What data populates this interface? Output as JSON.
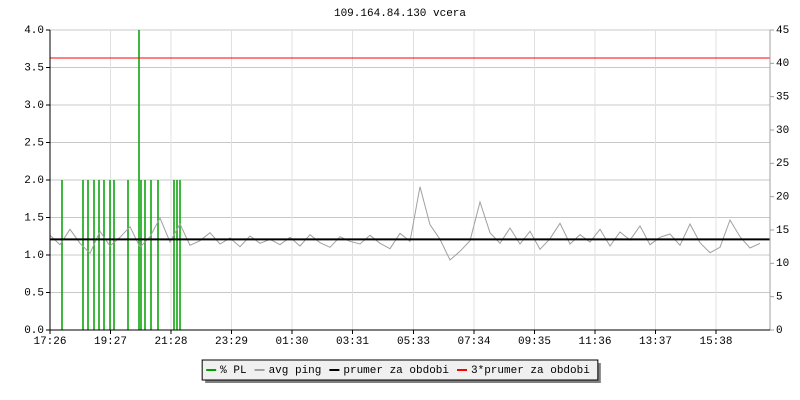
{
  "chart_data": {
    "type": "line",
    "title": "109.164.84.130 vcera",
    "xlim": [
      0,
      1440
    ],
    "xticks": [
      {
        "value": 0,
        "label": "17:26"
      },
      {
        "value": 121,
        "label": "19:27"
      },
      {
        "value": 242,
        "label": "21:28"
      },
      {
        "value": 363,
        "label": "23:29"
      },
      {
        "value": 484,
        "label": "01:30"
      },
      {
        "value": 605,
        "label": "03:31"
      },
      {
        "value": 727,
        "label": "05:33"
      },
      {
        "value": 848,
        "label": "07:34"
      },
      {
        "value": 969,
        "label": "09:35"
      },
      {
        "value": 1090,
        "label": "11:36"
      },
      {
        "value": 1211,
        "label": "13:37"
      },
      {
        "value": 1332,
        "label": "15:38"
      }
    ],
    "ylim": [
      0,
      4
    ],
    "yticks": [
      {
        "value": 0,
        "label": "0.0"
      },
      {
        "value": 0.5,
        "label": "0.5"
      },
      {
        "value": 1,
        "label": "1.0"
      },
      {
        "value": 1.5,
        "label": "1.5"
      },
      {
        "value": 2,
        "label": "2.0"
      },
      {
        "value": 2.5,
        "label": "2.5"
      },
      {
        "value": 3,
        "label": "3.0"
      },
      {
        "value": 3.5,
        "label": "3.5"
      },
      {
        "value": 4,
        "label": "4.0"
      }
    ],
    "y2lim": [
      0,
      45
    ],
    "y2ticks": [
      0,
      5,
      10,
      15,
      20,
      25,
      30,
      35,
      40,
      45
    ],
    "grid": true,
    "legend": "bottom",
    "series": [
      {
        "name": "% PL",
        "color": "#00a000",
        "kind": "bars",
        "x": [
          24,
          66,
          76,
          88,
          98,
          108,
          120,
          128,
          156,
          178,
          182,
          190,
          202,
          216,
          248,
          254,
          260
        ],
        "values": [
          2,
          2,
          2,
          2,
          2,
          2,
          2,
          2,
          2,
          4,
          2,
          2,
          2,
          2,
          2,
          2,
          2
        ]
      },
      {
        "name": "avg ping",
        "color": "#a0a0a0",
        "kind": "line",
        "axis": "y2",
        "x": [
          0,
          20,
          40,
          60,
          80,
          100,
          120,
          140,
          160,
          180,
          200,
          220,
          240,
          260,
          280,
          300,
          320,
          340,
          360,
          380,
          400,
          420,
          440,
          460,
          480,
          500,
          520,
          540,
          560,
          580,
          600,
          620,
          640,
          660,
          680,
          700,
          720,
          740,
          760,
          780,
          800,
          820,
          840,
          860,
          880,
          900,
          920,
          940,
          960,
          980,
          1000,
          1020,
          1040,
          1060,
          1080,
          1100,
          1120,
          1140,
          1160,
          1180,
          1200,
          1220,
          1240,
          1260,
          1280,
          1300,
          1320,
          1340,
          1360,
          1380,
          1400,
          1420
        ],
        "values": [
          14.2,
          12.8,
          15.1,
          13.0,
          11.5,
          14.8,
          12.6,
          13.9,
          15.5,
          12.4,
          14.0,
          16.8,
          13.2,
          15.9,
          12.7,
          13.4,
          14.6,
          12.9,
          13.8,
          12.5,
          14.1,
          13.0,
          13.6,
          12.8,
          13.9,
          12.6,
          14.3,
          13.1,
          12.4,
          14.0,
          13.3,
          12.9,
          14.2,
          13.0,
          12.2,
          14.5,
          13.3,
          21.5,
          15.8,
          13.6,
          10.5,
          11.8,
          13.4,
          19.2,
          14.6,
          13.0,
          15.3,
          12.9,
          14.8,
          12.1,
          13.7,
          16.0,
          12.9,
          14.3,
          13.2,
          15.1,
          12.6,
          14.7,
          13.5,
          15.6,
          12.8,
          13.9,
          14.4,
          12.7,
          15.9,
          13.1,
          11.6,
          12.4,
          16.5,
          14.0,
          12.3,
          13.0
        ]
      },
      {
        "name": "prumer za obdobi",
        "color": "#000000",
        "kind": "hline",
        "axis": "y2",
        "values": [
          13.6
        ]
      },
      {
        "name": "3*prumer za obdobi",
        "color": "#ff0000",
        "kind": "hline",
        "axis": "y2",
        "values": [
          40.8
        ]
      }
    ]
  }
}
